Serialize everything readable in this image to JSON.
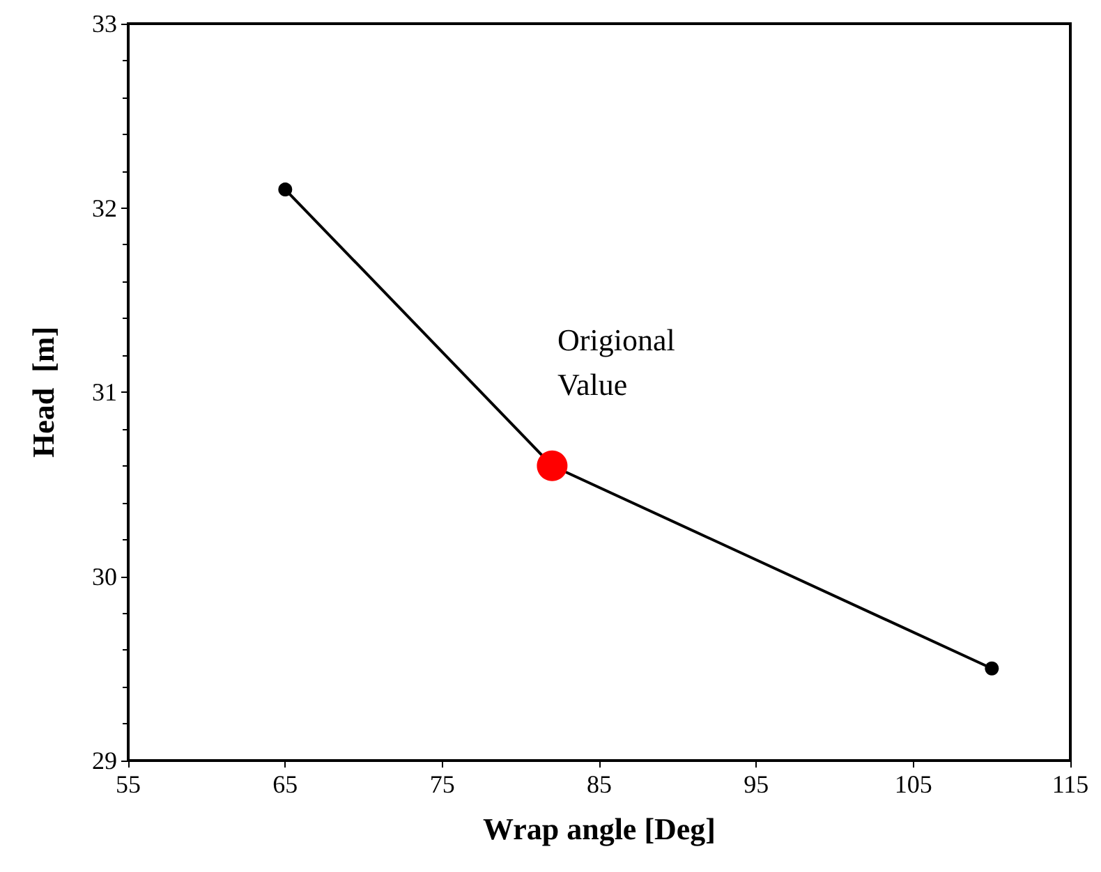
{
  "chart_data": {
    "type": "line",
    "xlabel": "Wrap angle [Deg]",
    "ylabel": "Head  [m]",
    "x": [
      65,
      82,
      110
    ],
    "series": [
      {
        "color": "#000000",
        "colors": [
          "#000000",
          "#ff0000",
          "#000000"
        ],
        "values": [
          32.1,
          30.6,
          29.5
        ]
      }
    ],
    "xlim": [
      55,
      115
    ],
    "xticks": [
      55,
      65,
      75,
      85,
      95,
      105,
      115
    ],
    "ylim": [
      29,
      33
    ],
    "yticks": [
      29,
      30,
      31,
      32,
      33
    ],
    "marker": "circle",
    "line_style": "solid",
    "grid": false,
    "annotations": [
      "Origional Value"
    ]
  }
}
